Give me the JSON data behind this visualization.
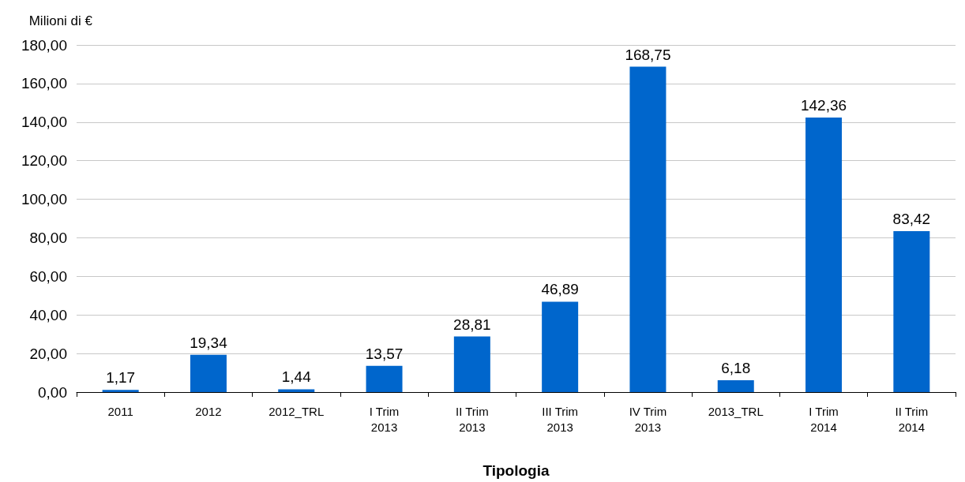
{
  "chart_data": {
    "type": "bar",
    "ylabel": "Milioni di €",
    "xlabel": "Tipologia",
    "categories": [
      "2011",
      "2012",
      "2012_TRL",
      "I Trim\n2013",
      "II Trim\n2013",
      "III Trim\n2013",
      "IV Trim\n2013",
      "2013_TRL",
      "I Trim\n2014",
      "II Trim\n2014"
    ],
    "series": [
      {
        "color": "#0066cc",
        "values": [
          1.17,
          19.34,
          1.44,
          13.57,
          28.81,
          46.89,
          168.75,
          6.18,
          142.36,
          83.42
        ],
        "value_labels": [
          "1,17",
          "19,34",
          "1,44",
          "13,57",
          "28,81",
          "46,89",
          "168,75",
          "6,18",
          "142,36",
          "83,42"
        ]
      }
    ],
    "ylim": [
      0,
      180
    ],
    "yticks": [
      {
        "value": 0,
        "label": "0,00"
      },
      {
        "value": 20,
        "label": "20,00"
      },
      {
        "value": 40,
        "label": "40,00"
      },
      {
        "value": 60,
        "label": "60,00"
      },
      {
        "value": 80,
        "label": "80,00"
      },
      {
        "value": 100,
        "label": "100,00"
      },
      {
        "value": 120,
        "label": "120,00"
      },
      {
        "value": 140,
        "label": "140,00"
      },
      {
        "value": 160,
        "label": "160,00"
      },
      {
        "value": 180,
        "label": "180,00"
      }
    ],
    "grid": "y"
  }
}
